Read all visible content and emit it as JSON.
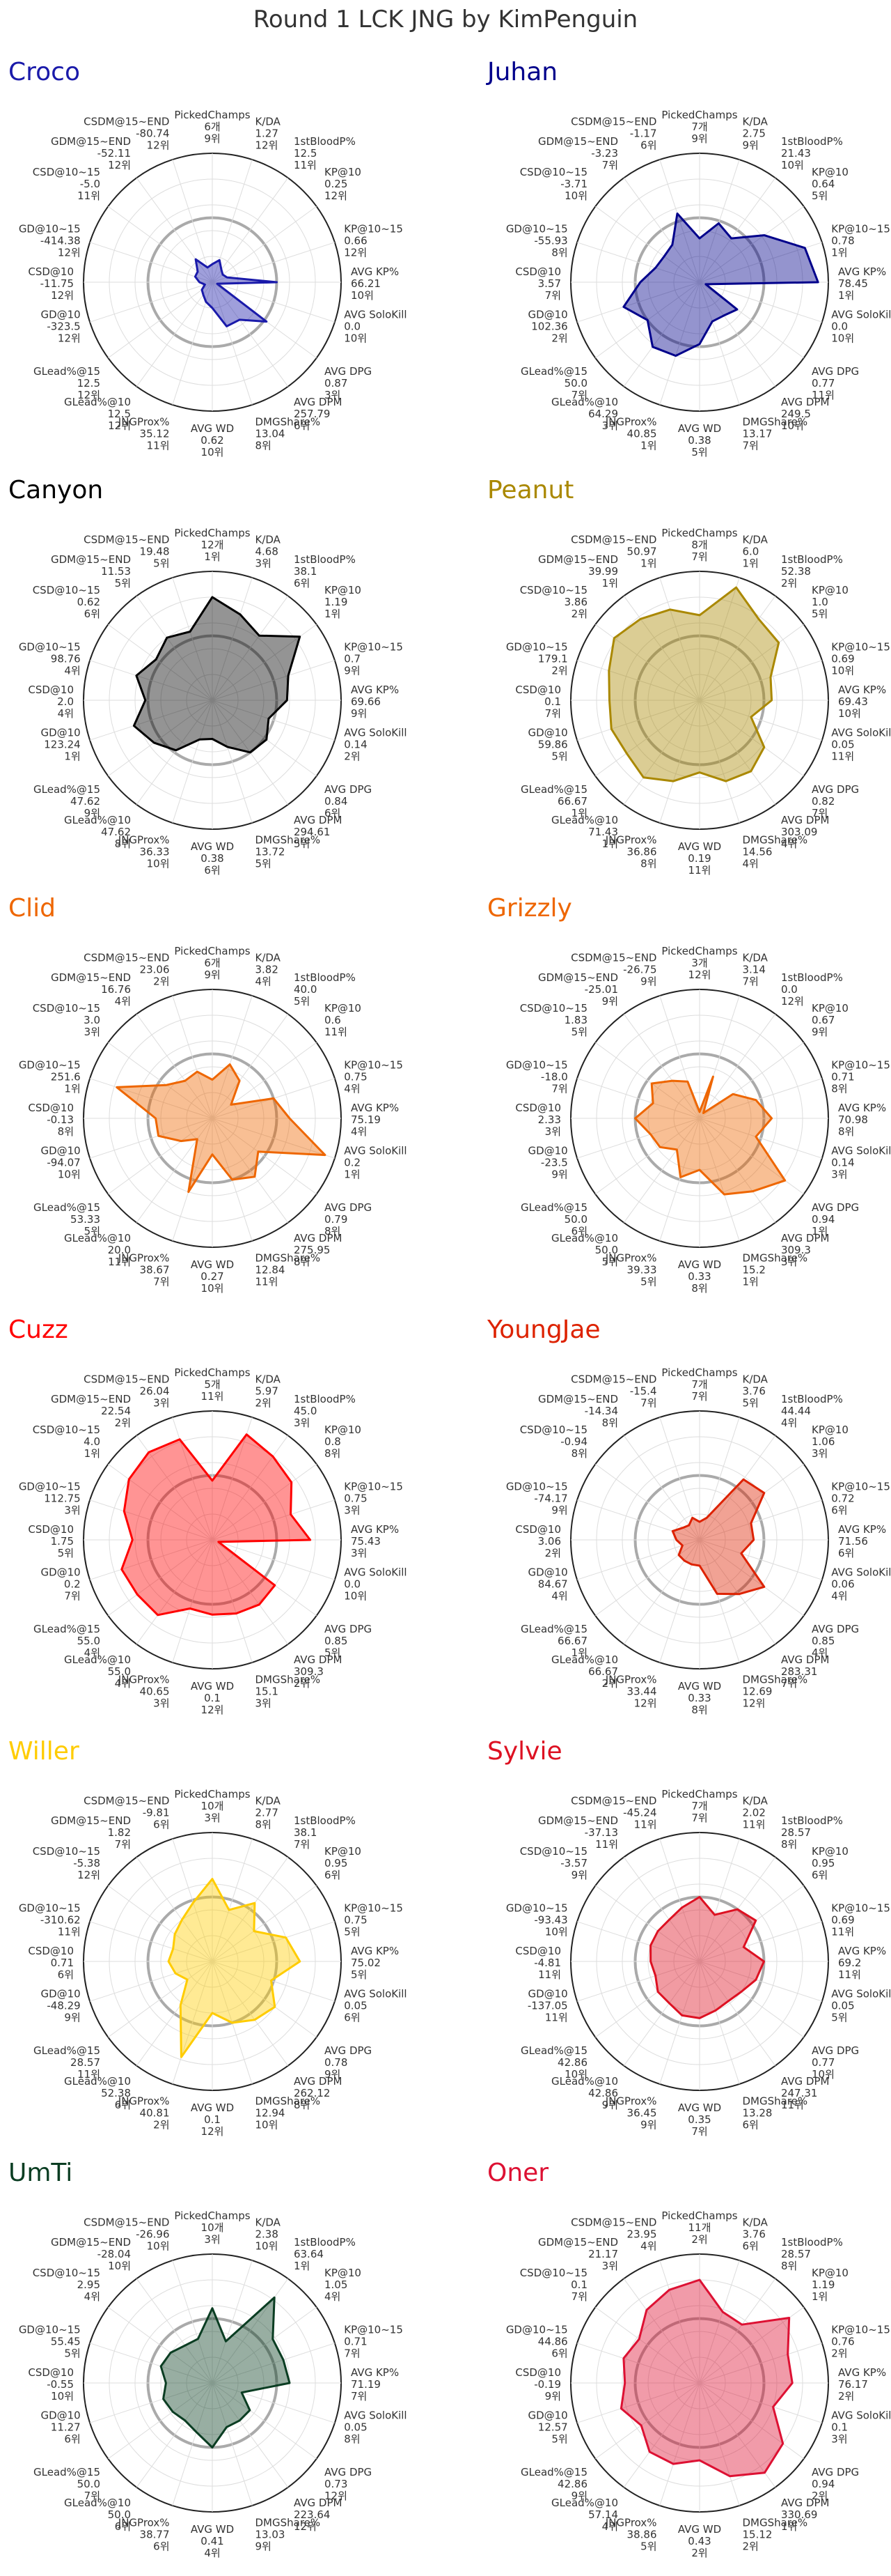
{
  "title": "Round 1 LCK JNG by KimPenguin",
  "metrics": [
    "PickedChamps",
    "K/DA",
    "1stBloodP%",
    "KP@10",
    "KP@10~15",
    "AVG KP%",
    "AVG SoloKill",
    "AVG DPG",
    "AVG DPM",
    "DMGShare%",
    "AVG WD",
    "JNGProx%",
    "GLead%@10",
    "GLead%@15",
    "GD@10",
    "CSD@10",
    "GD@10~15",
    "CSD@10~15",
    "GDM@15~END",
    "CSDM@15~END"
  ],
  "chart_data": [
    {
      "type": "radar",
      "name": "Croco",
      "color": "#1a1aaa",
      "labels": [
        "6개",
        "1.27",
        "12.5",
        "0.25",
        "0.66",
        "66.21",
        "0.0",
        "0.87",
        "257.79",
        "13.04",
        "0.62",
        "35.12",
        "12.5",
        "12.5",
        "-323.5",
        "-11.75",
        "-414.38",
        "-5.0",
        "-52.11",
        "-80.74"
      ],
      "ranks": [
        "9위",
        "12위",
        "11위",
        "12위",
        "12위",
        "10위",
        "10위",
        "3위",
        "6위",
        "8위",
        "10위",
        "11위",
        "12위",
        "12위",
        "12위",
        "12위",
        "12위",
        "11위",
        "12위",
        "12위"
      ],
      "values": [
        0.14,
        0.18,
        0.12,
        0.1,
        0.12,
        0.5,
        0.04,
        0.52,
        0.36,
        0.36,
        0.2,
        0.16,
        0.12,
        0.1,
        0.06,
        0.1,
        0.14,
        0.14,
        0.22,
        0.12
      ]
    },
    {
      "type": "radar",
      "name": "Juhan",
      "color": "#00008b",
      "labels": [
        "7개",
        "2.75",
        "21.43",
        "0.64",
        "0.78",
        "78.45",
        "0.0",
        "0.77",
        "249.5",
        "13.17",
        "0.38",
        "40.85",
        "64.29",
        "50.0",
        "102.36",
        "3.57",
        "-55.93",
        "-3.71",
        "-3.23",
        "-1.17"
      ],
      "ranks": [
        "9위",
        "9위",
        "10위",
        "5위",
        "1위",
        "1위",
        "10위",
        "11위",
        "10위",
        "7위",
        "5위",
        "1위",
        "3위",
        "7위",
        "2위",
        "7위",
        "8위",
        "10위",
        "7위",
        "6위"
      ],
      "values": [
        0.34,
        0.48,
        0.42,
        0.62,
        0.86,
        0.92,
        0.05,
        0.36,
        0.32,
        0.32,
        0.48,
        0.6,
        0.62,
        0.5,
        0.62,
        0.46,
        0.36,
        0.34,
        0.36,
        0.56
      ]
    },
    {
      "type": "radar",
      "name": "Canyon",
      "color": "#000000",
      "labels": [
        "12개",
        "4.68",
        "38.1",
        "1.19",
        "0.7",
        "69.66",
        "0.14",
        "0.84",
        "294.61",
        "13.72",
        "0.38",
        "36.33",
        "47.62",
        "47.62",
        "123.24",
        "2.0",
        "98.76",
        "0.62",
        "11.53",
        "19.48"
      ],
      "ranks": [
        "1위",
        "3위",
        "6위",
        "1위",
        "9위",
        "9위",
        "2위",
        "6위",
        "5위",
        "5위",
        "6위",
        "10위",
        "8위",
        "9위",
        "1위",
        "4위",
        "4위",
        "6위",
        "5위",
        "5위"
      ],
      "values": [
        0.8,
        0.7,
        0.62,
        0.84,
        0.62,
        0.58,
        0.46,
        0.52,
        0.5,
        0.38,
        0.3,
        0.32,
        0.48,
        0.56,
        0.64,
        0.52,
        0.62,
        0.54,
        0.6,
        0.56
      ]
    },
    {
      "type": "radar",
      "name": "Peanut",
      "color": "#aa8800",
      "labels": [
        "8개",
        "6.0",
        "52.38",
        "1.0",
        "0.69",
        "69.43",
        "0.05",
        "0.82",
        "303.09",
        "14.56",
        "0.19",
        "36.86",
        "71.43",
        "66.67",
        "59.86",
        "0.1",
        "179.1",
        "3.86",
        "39.99",
        "50.97"
      ],
      "ranks": [
        "7위",
        "1위",
        "2위",
        "5위",
        "10위",
        "10위",
        "11위",
        "7위",
        "4위",
        "4위",
        "11위",
        "8위",
        "1위",
        "1위",
        "5위",
        "7위",
        "2위",
        "2위",
        "1위",
        "1위"
      ],
      "values": [
        0.66,
        0.92,
        0.78,
        0.76,
        0.58,
        0.56,
        0.42,
        0.62,
        0.68,
        0.66,
        0.56,
        0.66,
        0.74,
        0.7,
        0.72,
        0.7,
        0.74,
        0.82,
        0.78,
        0.74
      ]
    },
    {
      "type": "radar",
      "name": "Clid",
      "color": "#ee6600",
      "labels": [
        "6개",
        "3.82",
        "40.0",
        "0.6",
        "0.75",
        "75.19",
        "0.2",
        "0.79",
        "275.95",
        "12.84",
        "0.27",
        "38.67",
        "20.0",
        "53.33",
        "-94.07",
        "-0.13",
        "251.6",
        "3.0",
        "16.76",
        "23.06"
      ],
      "ranks": [
        "9위",
        "4위",
        "5위",
        "11위",
        "4위",
        "4위",
        "1위",
        "8위",
        "8위",
        "11위",
        "10위",
        "7위",
        "11위",
        "5위",
        "10위",
        "8위",
        "1위",
        "3위",
        "4위",
        "2위"
      ],
      "values": [
        0.3,
        0.44,
        0.36,
        0.18,
        0.5,
        0.6,
        0.92,
        0.44,
        0.56,
        0.5,
        0.28,
        0.6,
        0.2,
        0.3,
        0.44,
        0.44,
        0.78,
        0.44,
        0.36,
        0.38
      ]
    },
    {
      "type": "radar",
      "name": "Grizzly",
      "color": "#ee6600",
      "labels": [
        "3개",
        "3.14",
        "0.0",
        "0.67",
        "0.71",
        "70.98",
        "0.14",
        "0.94",
        "309.3",
        "15.2",
        "0.33",
        "39.33",
        "50.0",
        "50.0",
        "-23.5",
        "2.33",
        "-18.0",
        "1.83",
        "-25.01",
        "-26.75"
      ],
      "ranks": [
        "12위",
        "7위",
        "12위",
        "9위",
        "8위",
        "8위",
        "3위",
        "1위",
        "3위",
        "1위",
        "8위",
        "5위",
        "5위",
        "6위",
        "9위",
        "3위",
        "7위",
        "5위",
        "9위",
        "9위"
      ],
      "values": [
        0.05,
        0.34,
        0.05,
        0.32,
        0.46,
        0.56,
        0.46,
        0.82,
        0.7,
        0.62,
        0.4,
        0.48,
        0.3,
        0.38,
        0.4,
        0.5,
        0.38,
        0.46,
        0.36,
        0.3
      ]
    },
    {
      "type": "radar",
      "name": "Cuzz",
      "color": "#ff0000",
      "labels": [
        "5개",
        "5.97",
        "45.0",
        "0.8",
        "0.75",
        "75.43",
        "0.0",
        "0.85",
        "309.3",
        "15.1",
        "0.1",
        "40.65",
        "55.0",
        "55.0",
        "0.2",
        "1.75",
        "112.75",
        "4.0",
        "22.54",
        "26.04"
      ],
      "ranks": [
        "11위",
        "2위",
        "3위",
        "8위",
        "3위",
        "3위",
        "10위",
        "5위",
        "2위",
        "3위",
        "12위",
        "3위",
        "4위",
        "4위",
        "7위",
        "5위",
        "3위",
        "1위",
        "2위",
        "3위"
      ],
      "values": [
        0.46,
        0.86,
        0.8,
        0.76,
        0.64,
        0.76,
        0.05,
        0.6,
        0.62,
        0.6,
        0.58,
        0.56,
        0.72,
        0.72,
        0.74,
        0.62,
        0.72,
        0.8,
        0.84,
        0.82
      ]
    },
    {
      "type": "radar",
      "name": "YoungJae",
      "color": "#dd2200",
      "labels": [
        "7개",
        "3.76",
        "44.44",
        "1.06",
        "0.72",
        "71.56",
        "0.06",
        "0.85",
        "283.31",
        "12.69",
        "0.33",
        "33.44",
        "66.67",
        "66.67",
        "84.67",
        "3.06",
        "-74.17",
        "-0.94",
        "-14.34",
        "-15.4"
      ],
      "ranks": [
        "7위",
        "5위",
        "4위",
        "3위",
        "6위",
        "6위",
        "4위",
        "4위",
        "7위",
        "12위",
        "8위",
        "12위",
        "2위",
        "1위",
        "4위",
        "2위",
        "9위",
        "8위",
        "8위",
        "7위"
      ],
      "values": [
        0.14,
        0.18,
        0.58,
        0.62,
        0.42,
        0.42,
        0.34,
        0.62,
        0.52,
        0.44,
        0.2,
        0.2,
        0.2,
        0.2,
        0.14,
        0.18,
        0.22,
        0.16,
        0.14,
        0.18
      ]
    },
    {
      "type": "radar",
      "name": "Willer",
      "color": "#ffcc00",
      "labels": [
        "10개",
        "2.77",
        "38.1",
        "0.95",
        "0.75",
        "75.02",
        "0.05",
        "0.78",
        "262.12",
        "12.94",
        "0.1",
        "40.81",
        "52.38",
        "28.57",
        "-48.29",
        "0.71",
        "-310.62",
        "-5.38",
        "1.82",
        "-9.81"
      ],
      "ranks": [
        "3위",
        "8위",
        "7위",
        "6위",
        "5위",
        "5위",
        "6위",
        "9위",
        "8위",
        "10위",
        "12위",
        "2위",
        "6위",
        "11위",
        "9위",
        "6위",
        "11위",
        "12위",
        "7위",
        "6위"
      ],
      "values": [
        0.64,
        0.42,
        0.56,
        0.4,
        0.6,
        0.68,
        0.48,
        0.6,
        0.56,
        0.5,
        0.4,
        0.78,
        0.42,
        0.24,
        0.3,
        0.34,
        0.32,
        0.36,
        0.4,
        0.48
      ]
    },
    {
      "type": "radar",
      "name": "Sylvie",
      "color": "#dd1122",
      "labels": [
        "7개",
        "2.02",
        "28.57",
        "0.95",
        "0.69",
        "69.2",
        "0.05",
        "0.77",
        "247.31",
        "13.28",
        "0.35",
        "36.45",
        "42.86",
        "42.86",
        "-137.05",
        "-4.81",
        "-93.43",
        "-3.57",
        "-37.13",
        "-45.24"
      ],
      "ranks": [
        "7위",
        "11위",
        "8위",
        "6위",
        "11위",
        "11위",
        "5위",
        "10위",
        "11위",
        "6위",
        "7위",
        "9위",
        "9위",
        "10위",
        "11위",
        "11위",
        "10위",
        "9위",
        "11위",
        "11위"
      ],
      "values": [
        0.5,
        0.38,
        0.5,
        0.54,
        0.36,
        0.5,
        0.46,
        0.4,
        0.38,
        0.4,
        0.44,
        0.44,
        0.4,
        0.4,
        0.36,
        0.38,
        0.4,
        0.4,
        0.4,
        0.44
      ]
    },
    {
      "type": "radar",
      "name": "UmTi",
      "color": "#0a3d22",
      "labels": [
        "10개",
        "2.38",
        "63.64",
        "1.05",
        "0.71",
        "71.19",
        "0.05",
        "0.73",
        "223.64",
        "13.03",
        "0.41",
        "38.77",
        "50.0",
        "50.0",
        "11.27",
        "-0.55",
        "55.45",
        "2.95",
        "-28.04",
        "-26.96"
      ],
      "ranks": [
        "3위",
        "10위",
        "1위",
        "4위",
        "7위",
        "7위",
        "8위",
        "12위",
        "12위",
        "9위",
        "4위",
        "6위",
        "6위",
        "7위",
        "6위",
        "10위",
        "5위",
        "4위",
        "10위",
        "10위"
      ],
      "values": [
        0.58,
        0.34,
        0.82,
        0.58,
        0.58,
        0.6,
        0.24,
        0.36,
        0.36,
        0.36,
        0.5,
        0.4,
        0.36,
        0.38,
        0.4,
        0.36,
        0.42,
        0.4,
        0.36,
        0.36
      ]
    },
    {
      "type": "radar",
      "name": "Oner",
      "color": "#dd1133",
      "labels": [
        "11개",
        "3.76",
        "28.57",
        "1.19",
        "0.76",
        "76.17",
        "0.1",
        "0.94",
        "330.69",
        "15.12",
        "0.43",
        "38.86",
        "57.14",
        "42.86",
        "12.57",
        "-0.19",
        "44.86",
        "0.1",
        "21.17",
        "23.95"
      ],
      "ranks": [
        "2위",
        "6위",
        "8위",
        "1위",
        "2위",
        "2위",
        "3위",
        "2위",
        "1위",
        "2위",
        "2위",
        "5위",
        "4위",
        "9위",
        "5위",
        "9위",
        "6위",
        "7위",
        "3위",
        "4위"
      ],
      "values": [
        0.8,
        0.58,
        0.56,
        0.86,
        0.72,
        0.72,
        0.6,
        0.8,
        0.86,
        0.76,
        0.6,
        0.66,
        0.66,
        0.56,
        0.64,
        0.58,
        0.62,
        0.58,
        0.7,
        0.76
      ]
    }
  ]
}
